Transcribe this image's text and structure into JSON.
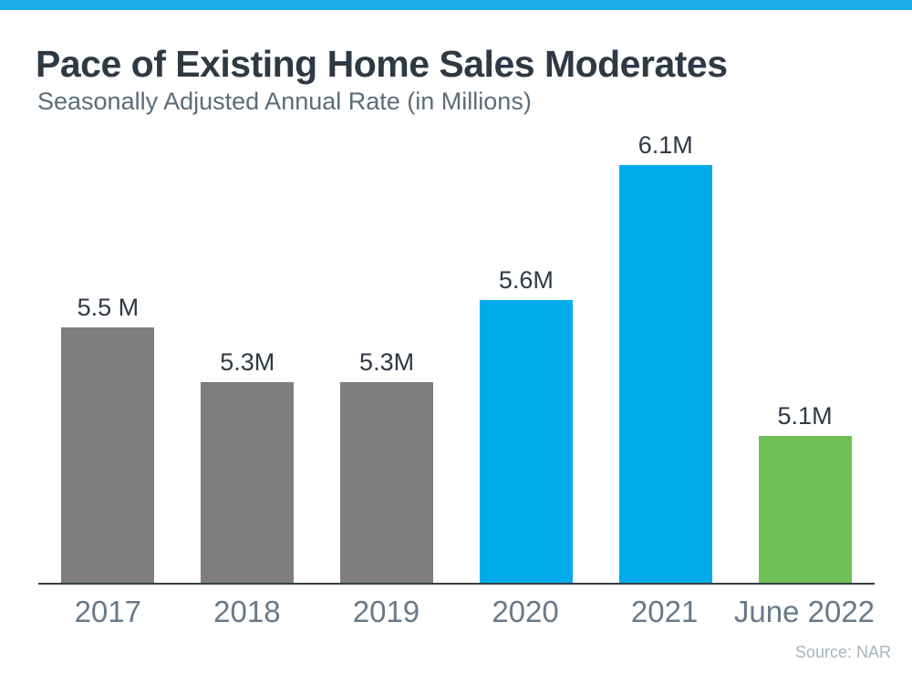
{
  "colors": {
    "top_bar": "#1CACEC",
    "bar_gray": "#7E7E7E",
    "bar_blue": "#00ABEC",
    "bar_green": "#6FC155",
    "axis_line": "#333F48",
    "title_text": "#2E3944",
    "subtitle_text": "#5C6C79",
    "tick_text": "#68798A",
    "source_text": "#A9B3BB"
  },
  "chart_data": {
    "type": "bar",
    "title": "Pace of Existing Home Sales Moderates",
    "subtitle": "Seasonally Adjusted Annual Rate (in Millions)",
    "categories": [
      "2017",
      "2018",
      "2019",
      "2020",
      "2021",
      "June 2022"
    ],
    "values": [
      5.5,
      5.3,
      5.3,
      5.6,
      6.1,
      5.1
    ],
    "value_labels": [
      "5.5 M",
      "5.3M",
      "5.3M",
      "5.6M",
      "6.1M",
      "5.1M"
    ],
    "bar_colors": [
      "#7E7E7E",
      "#7E7E7E",
      "#7E7E7E",
      "#00ABEC",
      "#00ABEC",
      "#6FC155"
    ],
    "xlabel": "",
    "ylabel": "",
    "ylim": [
      4.56,
      6.3
    ],
    "grid": false,
    "legend": false,
    "source": "Source: NAR"
  }
}
